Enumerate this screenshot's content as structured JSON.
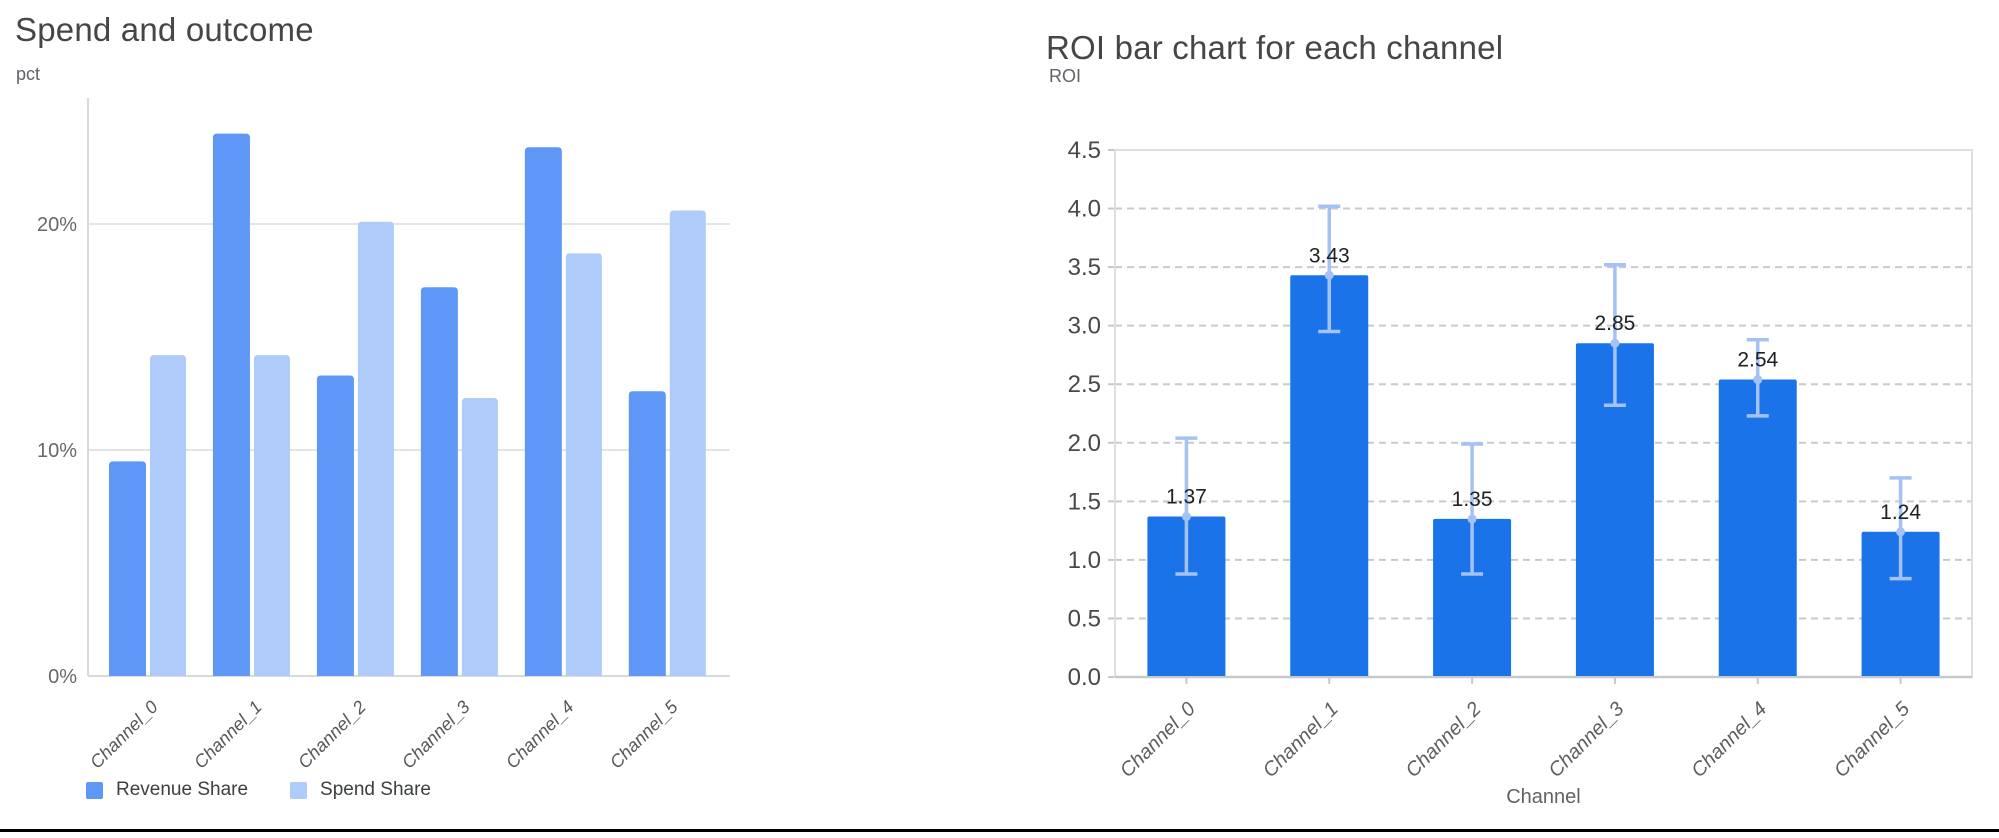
{
  "charts": {
    "left": {
      "title": "Spend and outcome",
      "unit_label": "pct",
      "legend": [
        {
          "label": "Revenue Share",
          "color": "#5e97f6"
        },
        {
          "label": "Spend Share",
          "color": "#aecbfa"
        }
      ]
    },
    "right": {
      "title": "ROI bar chart for each channel",
      "unit_label": "ROI",
      "xaxis_title": "Channel"
    }
  },
  "chart_data": [
    {
      "type": "bar",
      "title": "Spend and outcome",
      "xlabel": "",
      "ylabel": "pct",
      "categories": [
        "Channel_0",
        "Channel_1",
        "Channel_2",
        "Channel_3",
        "Channel_4",
        "Channel_5"
      ],
      "series": [
        {
          "name": "Revenue Share",
          "color": "#5e97f6",
          "values": [
            9.5,
            24.0,
            13.3,
            17.2,
            23.4,
            12.6
          ]
        },
        {
          "name": "Spend Share",
          "color": "#aecbfa",
          "values": [
            14.2,
            14.2,
            20.1,
            12.3,
            18.7,
            20.6
          ]
        }
      ],
      "ylim": [
        0,
        25.4
      ],
      "yticks": [
        {
          "value": 0,
          "label": "0%"
        },
        {
          "value": 10,
          "label": "10%"
        },
        {
          "value": 20,
          "label": "20%"
        }
      ],
      "grid": "solid horizontal",
      "legend_position": "bottom-left"
    },
    {
      "type": "bar",
      "title": "ROI bar chart for each channel",
      "xlabel": "Channel",
      "ylabel": "ROI",
      "categories": [
        "Channel_0",
        "Channel_1",
        "Channel_2",
        "Channel_3",
        "Channel_4",
        "Channel_5"
      ],
      "values": [
        1.37,
        3.43,
        1.35,
        2.85,
        2.54,
        1.24
      ],
      "bar_labels": [
        "1.37",
        "3.43",
        "1.35",
        "2.85",
        "2.54",
        "1.24"
      ],
      "error_low": [
        0.88,
        2.95,
        0.88,
        2.32,
        2.23,
        0.84
      ],
      "error_high": [
        2.04,
        4.02,
        1.99,
        3.52,
        2.88,
        1.7
      ],
      "bar_color": "#1a73e8",
      "error_color": "#a4c2f4",
      "ylim": [
        0,
        4.5
      ],
      "ytick_step": 0.5,
      "ytick_labels": [
        "0.0",
        "0.5",
        "1.0",
        "1.5",
        "2.0",
        "2.5",
        "3.0",
        "3.5",
        "4.0",
        "4.5"
      ],
      "grid": "dashed horizontal",
      "plot_border": true
    }
  ],
  "page": {
    "bottom_rule_color": "#000000",
    "background": "#ffffff"
  },
  "style_colors": {
    "title_text": "#444746",
    "axis_unit_text": "#5f6368",
    "left_tick_text": "#65696c",
    "right_tick_text": "#46494b",
    "bar_value_text": "#202124",
    "category_text_left": "#55585b",
    "category_text_right": "#5c6063",
    "gridline_left": "#e2e4e6",
    "axis_line_left": "#d7d9db",
    "gridline_right_dashed": "#c9c9c9",
    "plot_border_right": "#dde0e3",
    "axis_line_right": "#c6c9cc"
  }
}
